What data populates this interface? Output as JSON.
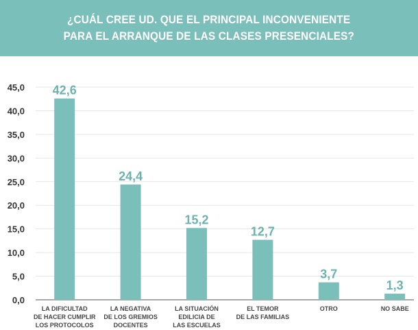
{
  "header": {
    "title_line1": "¿CUÁL CREE UD. QUE EL PRINCIPAL INCONVENIENTE",
    "title_line2": "PARA EL ARRANQUE DE LAS CLASES PRESENCIALES?"
  },
  "colors": {
    "header_bg": "#7bbfbb",
    "bar": "#7bbfbb",
    "label": "#6bb3ae"
  },
  "chart_data": {
    "type": "bar",
    "title": "¿CUÁL CREE UD. QUE EL PRINCIPAL INCONVENIENTE PARA EL ARRANQUE DE LAS CLASES PRESENCIALES?",
    "xlabel": "",
    "ylabel": "",
    "ylim": [
      0,
      45
    ],
    "grid": true,
    "categories": [
      [
        "LA DIFICULTAD",
        "DE HACER CUMPLIR",
        "LOS PROTOCOLOS"
      ],
      [
        "LA NEGATIVA",
        "DE LOS GREMIOS",
        "DOCENTES"
      ],
      [
        "LA SITUACIÓN",
        "EDILICIA DE",
        "LAS ESCUELAS"
      ],
      [
        "EL TEMOR",
        "DE LAS FAMILIAS"
      ],
      [
        "OTRO"
      ],
      [
        "NO SABE"
      ]
    ],
    "values": [
      42.6,
      24.4,
      15.2,
      12.7,
      3.7,
      1.3
    ],
    "value_labels": [
      "42,6",
      "24,4",
      "15,2",
      "12,7",
      "3,7",
      "1,3"
    ],
    "yticks": [
      0,
      5,
      10,
      15,
      20,
      25,
      30,
      35,
      40,
      45
    ],
    "ytick_labels": [
      "0,0",
      "5,0",
      "10,0",
      "15,0",
      "20,0",
      "25,0",
      "30,0",
      "35,0",
      "40,0",
      "45,0"
    ]
  }
}
